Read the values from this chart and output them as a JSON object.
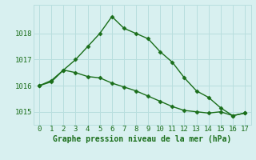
{
  "series1_x": [
    0,
    1,
    2,
    3,
    4,
    5,
    6,
    7,
    8,
    9,
    10,
    11,
    12,
    13,
    14,
    15,
    16,
    17
  ],
  "series1_y": [
    1016.0,
    1016.2,
    1016.6,
    1017.0,
    1017.5,
    1018.0,
    1018.65,
    1018.2,
    1018.0,
    1017.8,
    1017.3,
    1016.9,
    1016.3,
    1015.8,
    1015.55,
    1015.15,
    1014.85,
    1014.95
  ],
  "series2_x": [
    0,
    1,
    2,
    3,
    4,
    5,
    6,
    7,
    8,
    9,
    10,
    11,
    12,
    13,
    14,
    15,
    16,
    17
  ],
  "series2_y": [
    1016.0,
    1016.15,
    1016.6,
    1016.5,
    1016.35,
    1016.3,
    1016.1,
    1015.95,
    1015.8,
    1015.6,
    1015.4,
    1015.2,
    1015.05,
    1015.0,
    1014.95,
    1015.0,
    1014.85,
    1014.95
  ],
  "line_color": "#1a6e1a",
  "bg_color": "#d8f0f0",
  "grid_color": "#b8dede",
  "xlabel": "Graphe pression niveau de la mer (hPa)",
  "xlim": [
    -0.5,
    17.5
  ],
  "ylim": [
    1014.5,
    1019.1
  ],
  "yticks": [
    1015,
    1016,
    1017,
    1018
  ],
  "xticks": [
    0,
    1,
    2,
    3,
    4,
    5,
    6,
    7,
    8,
    9,
    10,
    11,
    12,
    13,
    14,
    15,
    16,
    17
  ],
  "marker": "D",
  "markersize": 2.5,
  "linewidth": 1.0,
  "xlabel_fontsize": 7,
  "tick_fontsize": 6.5
}
